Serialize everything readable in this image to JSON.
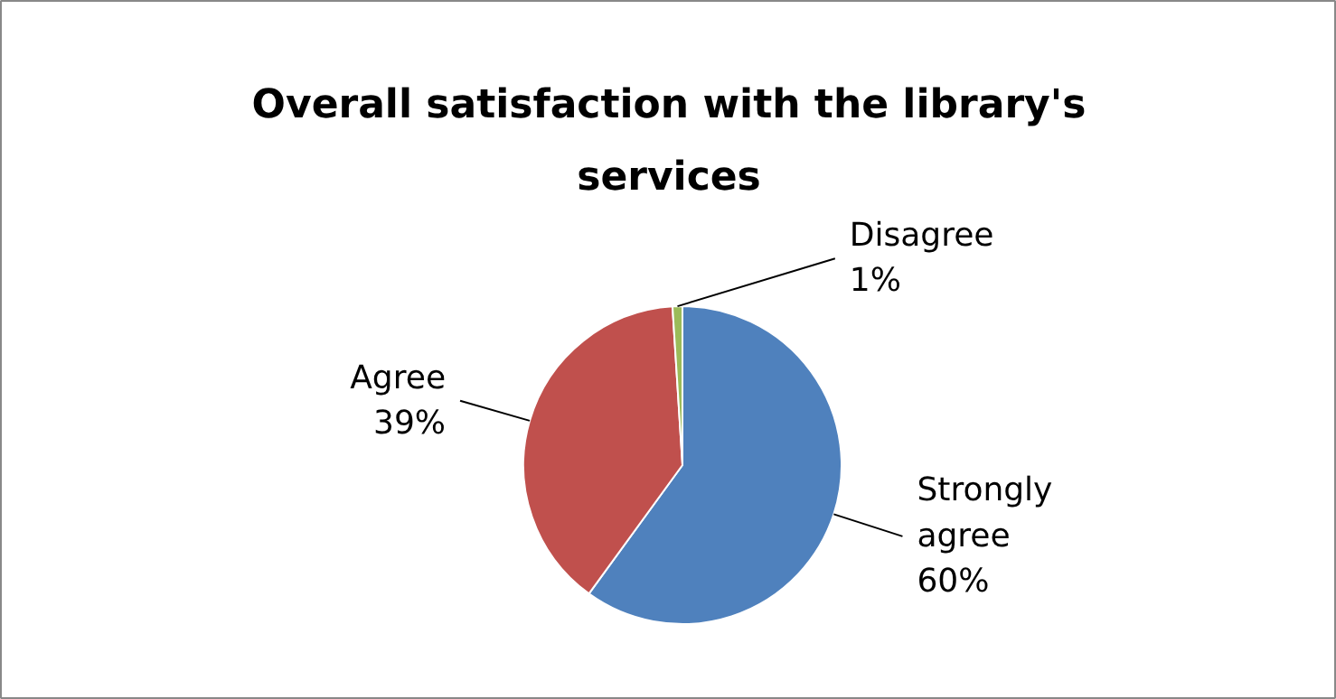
{
  "chart_data": {
    "type": "pie",
    "title": "Overall satisfaction with the library's services",
    "categories": [
      "Strongly agree",
      "Agree",
      "Disagree"
    ],
    "values": [
      60,
      39,
      1
    ],
    "colors": [
      "#4f81bd",
      "#c0504d",
      "#9bbb59"
    ],
    "value_labels": [
      "60%",
      "39%",
      "1%"
    ]
  }
}
